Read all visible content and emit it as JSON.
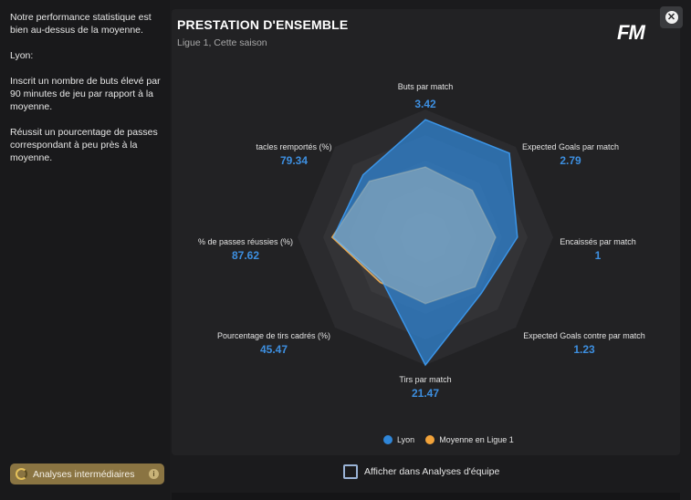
{
  "left_panel": {
    "paragraphs": [
      "Notre performance statistique est bien au-dessus de la moyenne.",
      "Lyon:",
      "Inscrit un nombre de buts élevé par 90 minutes de jeu par rapport à la moyenne.",
      "Réussit un pourcentage de passes correspondant à peu près à la moyenne."
    ],
    "button_label": "Analyses intermédiaires",
    "info_icon": "i"
  },
  "card": {
    "title": "PRESTATION D'ENSEMBLE",
    "subtitle": "Ligue 1, Cette saison",
    "logo": "FM",
    "close_icon": "close-icon"
  },
  "chart_data": {
    "type": "radar",
    "axes": [
      {
        "label": "Buts par match",
        "value": "3.42",
        "team": 0.92,
        "avg": 0.55
      },
      {
        "label": "Expected Goals par match",
        "value": "2.79",
        "team": 0.93,
        "avg": 0.52
      },
      {
        "label": "Encaissés par match",
        "value": "1",
        "team": 0.72,
        "avg": 0.55
      },
      {
        "label": "Expected Goals contre par match",
        "value": "1.23",
        "team": 0.62,
        "avg": 0.55
      },
      {
        "label": "Tirs par match",
        "value": "21.47",
        "team": 1.0,
        "avg": 0.52
      },
      {
        "label": "Pourcentage de tirs cadrés (%)",
        "value": "45.47",
        "team": 0.48,
        "avg": 0.5
      },
      {
        "label": "% de passes réussies (%)",
        "value": "87.62",
        "team": 0.72,
        "avg": 0.73
      },
      {
        "label": "tacles remportés (%)",
        "value": "79.34",
        "team": 0.69,
        "avg": 0.62
      }
    ],
    "series": [
      {
        "name": "Lyon",
        "color": "#2f86d8"
      },
      {
        "name": "Moyenne en Ligue 1",
        "color": "#f2a33a"
      }
    ]
  },
  "checkbox": {
    "label": "Afficher dans Analyses d'équipe",
    "checked": false
  }
}
